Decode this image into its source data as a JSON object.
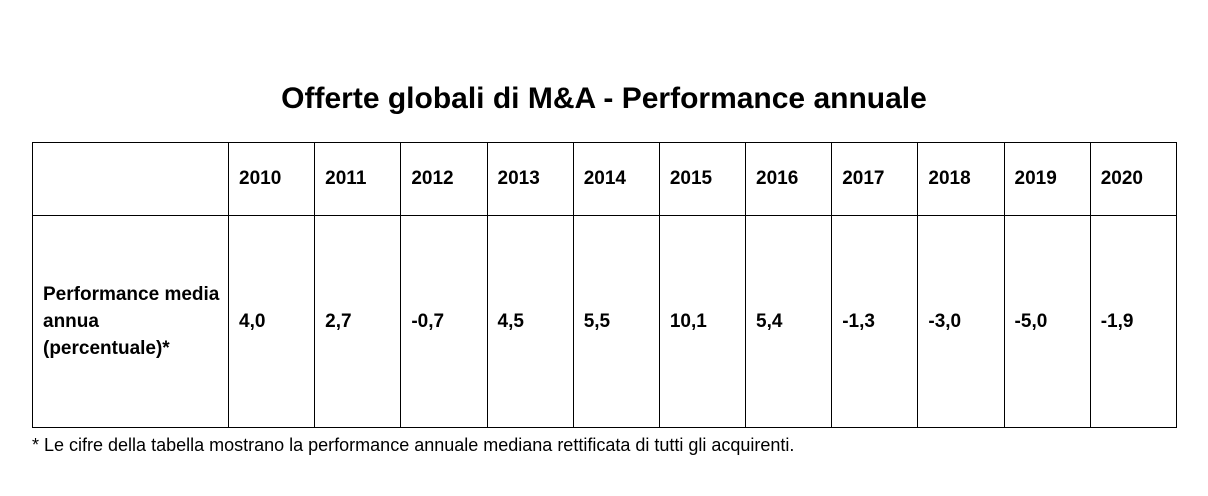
{
  "title": "Offerte globali di M&A - Performance annuale",
  "chart_data": {
    "type": "table",
    "title": "Offerte globali di M&A - Performance annuale",
    "columns": [
      "",
      "2010",
      "2011",
      "2012",
      "2013",
      "2014",
      "2015",
      "2016",
      "2017",
      "2018",
      "2019",
      "2020"
    ],
    "rows": [
      {
        "label": "Performance media annua (percentuale)*",
        "values": [
          "4,0",
          "2,7",
          "-0,7",
          "4,5",
          "5,5",
          "10,1",
          "5,4",
          "-1,3",
          "-3,0",
          "-5,0",
          "-1,9"
        ],
        "values_numeric": [
          4.0,
          2.7,
          -0.7,
          4.5,
          5.5,
          10.1,
          5.4,
          -1.3,
          -3.0,
          -5.0,
          -1.9
        ]
      }
    ],
    "footnote": "* Le cifre della tabella mostrano la performance annuale mediana rettificata di tutti gli acquirenti.",
    "layout": {
      "grid": "on",
      "border_color": "#000000",
      "background": "#ffffff"
    }
  }
}
